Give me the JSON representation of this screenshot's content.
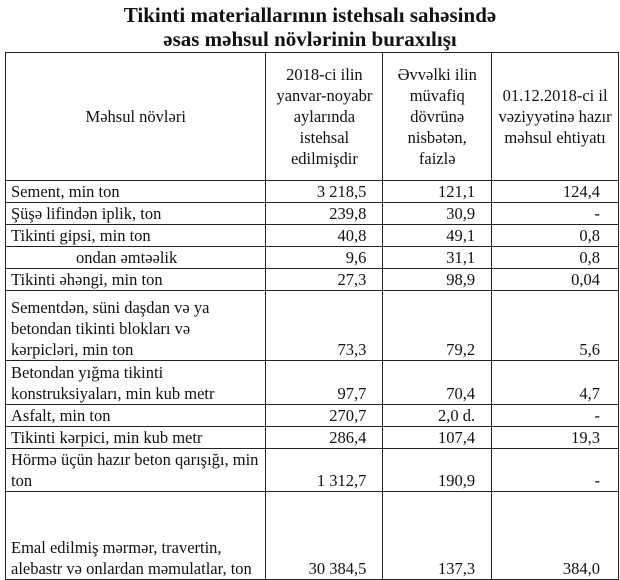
{
  "title_line1": "Tikinti materiallarının istehsalı sahəsində",
  "title_line2": "əsas məhsul növlərinin buraxılışı",
  "headers": [
    "Məhsul növləri",
    "2018-ci ilin yanvar-noyabr aylarında istehsal edilmişdir",
    "Əvvəlki ilin müvafiq dövrünə nisbətən, faizlə",
    "01.12.2018-ci il vəziyyətinə hazır məhsul ehtiyatı"
  ],
  "rows": [
    {
      "name": "Sement, min ton",
      "produced": "3 218,5",
      "percent": "121,1",
      "stock": "124,4"
    },
    {
      "name": "Şüşə lifindən iplik, ton",
      "produced": "239,8",
      "percent": "30,9",
      "stock": "-"
    },
    {
      "name": "Tikinti gipsi, min ton",
      "produced": "40,8",
      "percent": "49,1",
      "stock": "0,8"
    },
    {
      "name": "ondan əmtəəlik",
      "produced": "9,6",
      "percent": "31,1",
      "stock": "0,8"
    },
    {
      "name": "Tikinti əhəngi, min ton",
      "produced": "27,3",
      "percent": "98,9",
      "stock": "0,04"
    },
    {
      "name": "Sementdən, süni daşdan və ya betondan tikinti blokları və kərpicləri, min ton",
      "produced": "73,3",
      "percent": "79,2",
      "stock": "5,6"
    },
    {
      "name": "Betondan yığma tikinti konstruksiyaları, min kub metr",
      "produced": "97,7",
      "percent": "70,4",
      "stock": "4,7"
    },
    {
      "name": "Asfalt, min ton",
      "produced": "270,7",
      "percent": "2,0 d.",
      "stock": "-"
    },
    {
      "name": "Tikinti kərpici, min kub metr",
      "produced": "286,4",
      "percent": "107,4",
      "stock": "19,3"
    },
    {
      "name": "Hörmə üçün hazır beton qarışığı, min ton",
      "produced": "1 312,7",
      "percent": "190,9",
      "stock": "-"
    },
    {
      "name": "Emal edilmiş mərmər, travertin, alebastr və onlardan məmulatlar, ton",
      "produced": "30 384,5",
      "percent": "137,3",
      "stock": "384,0"
    }
  ]
}
